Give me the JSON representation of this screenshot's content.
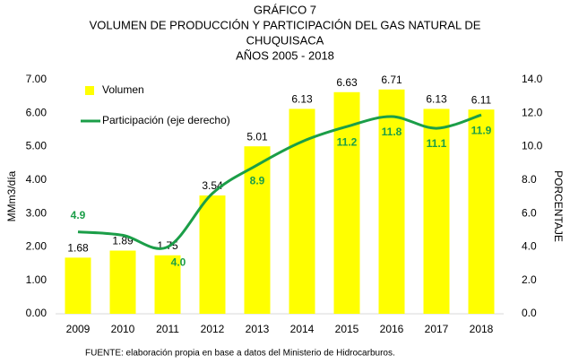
{
  "chart_data": {
    "type": "bar_line",
    "title": [
      "GRÁFICO 7",
      "VOLUMEN DE PRODUCCIÓN Y PARTICIPACIÓN DEL GAS NATURAL DE",
      "CHUQUISACA",
      "AÑOS 2005 - 2018"
    ],
    "categories": [
      "2009",
      "2010",
      "2011",
      "2012",
      "2013",
      "2014",
      "2015",
      "2016",
      "2017",
      "2018"
    ],
    "series": [
      {
        "name": "Volumen",
        "color": "#ffff00",
        "type": "bar",
        "values": [
          1.68,
          1.89,
          1.75,
          3.54,
          5.01,
          6.13,
          6.63,
          6.71,
          6.13,
          6.11
        ]
      },
      {
        "name": "Participación (eje derecho)",
        "color": "#1b9e48",
        "type": "line",
        "axis": "y2",
        "values": [
          4.9,
          4.7,
          4.0,
          7.2,
          8.9,
          10.3,
          11.2,
          11.8,
          11.1,
          11.9
        ],
        "value_labels": [
          "4.9",
          null,
          "4.0",
          null,
          "8.9",
          null,
          "11.2",
          "11.8",
          "11.1",
          "11.9"
        ]
      }
    ],
    "ylabel": "MMm3/día",
    "y2label": "PORCENTAJE",
    "ylim": [
      0,
      7
    ],
    "yticks": [
      {
        "value": 0,
        "label": "0.00"
      },
      {
        "value": 1,
        "label": "1.00"
      },
      {
        "value": 2,
        "label": "2.00"
      },
      {
        "value": 3,
        "label": "3.00"
      },
      {
        "value": 4,
        "label": "4.00"
      },
      {
        "value": 5,
        "label": "5.00"
      },
      {
        "value": 6,
        "label": "6.00"
      },
      {
        "value": 7,
        "label": "7.00"
      }
    ],
    "y2lim": [
      0,
      14
    ],
    "y2ticks": [
      {
        "value": 0,
        "label": "0.0"
      },
      {
        "value": 2,
        "label": "2.0"
      },
      {
        "value": 4,
        "label": "4.0"
      },
      {
        "value": 6,
        "label": "6.0"
      },
      {
        "value": 8,
        "label": "8.0"
      },
      {
        "value": 10,
        "label": "10.0"
      },
      {
        "value": 12,
        "label": "12.0"
      },
      {
        "value": 14,
        "label": "14.0"
      }
    ],
    "source": "FUENTE: elaboración propia en base a datos del Ministerio de Hidrocarburos."
  }
}
